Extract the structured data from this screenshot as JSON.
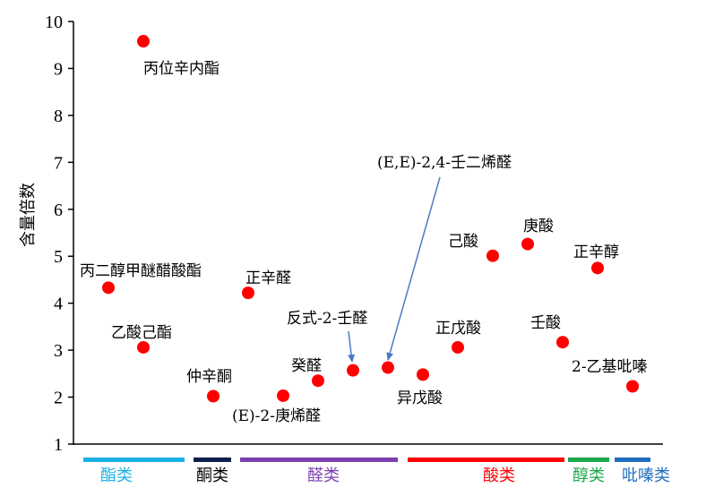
{
  "chart_data": {
    "type": "scatter",
    "title": "",
    "xlabel": "",
    "ylabel": "含量倍数",
    "ylim": [
      1,
      10
    ],
    "yticks": [
      1,
      2,
      3,
      4,
      5,
      6,
      7,
      8,
      9,
      10
    ],
    "grid": false,
    "legend": "none",
    "point_color": "#ff0000",
    "points": [
      {
        "x": 1,
        "y": 9.58,
        "label": "丙位辛内酯"
      },
      {
        "x": 0,
        "y": 4.33,
        "label": "丙二醇甲醚醋酸酯"
      },
      {
        "x": 1,
        "y": 3.06,
        "label": "乙酸己酯"
      },
      {
        "x": 3,
        "y": 2.02,
        "label": "仲辛酮"
      },
      {
        "x": 4,
        "y": 4.22,
        "label": "正辛醛"
      },
      {
        "x": 5,
        "y": 2.03,
        "label": "(E)-2-庚烯醛"
      },
      {
        "x": 6,
        "y": 2.35,
        "label": "癸醛"
      },
      {
        "x": 7,
        "y": 2.57,
        "label": "反式-2-壬醛"
      },
      {
        "x": 8,
        "y": 2.63,
        "label": "(E,E)-2,4-壬二烯醛"
      },
      {
        "x": 9,
        "y": 2.48,
        "label": "异戊酸"
      },
      {
        "x": 10,
        "y": 3.06,
        "label": "正戊酸"
      },
      {
        "x": 11,
        "y": 5.01,
        "label": "己酸"
      },
      {
        "x": 12,
        "y": 5.26,
        "label": "庚酸"
      },
      {
        "x": 13,
        "y": 3.17,
        "label": "壬酸"
      },
      {
        "x": 14,
        "y": 4.75,
        "label": "正辛醇"
      },
      {
        "x": 15,
        "y": 2.23,
        "label": "2-乙基吡嗪"
      }
    ],
    "categories": [
      {
        "name": "酯类",
        "color": "#1ab2e6"
      },
      {
        "name": "酮类",
        "color": "#0f1f4d"
      },
      {
        "name": "醛类",
        "color": "#7b3fb0"
      },
      {
        "name": "酸类",
        "color": "#ff0000"
      },
      {
        "name": "醇类",
        "color": "#1aa84a"
      },
      {
        "name": "吡嗪类",
        "color": "#1f6fbf"
      }
    ]
  }
}
